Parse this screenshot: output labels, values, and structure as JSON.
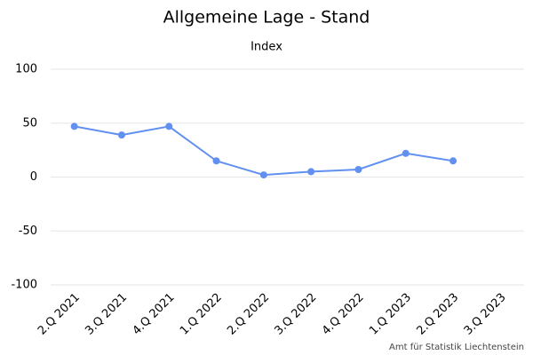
{
  "chart_data": {
    "type": "line",
    "title": "Allgemeine Lage - Stand",
    "subtitle": "Index",
    "credit": "Amt für Statistik Liechtenstein",
    "categories": [
      "2.Q 2021",
      "3.Q 2021",
      "4.Q 2021",
      "1.Q 2022",
      "2.Q 2022",
      "3.Q 2022",
      "4.Q 2022",
      "1.Q 2023",
      "2.Q 2023",
      "3.Q 2023"
    ],
    "values": [
      47,
      39,
      47,
      15,
      2,
      5,
      7,
      22,
      15,
      null
    ],
    "color": "#6190f0",
    "ylim": [
      -100,
      100
    ],
    "yticks": [
      -100,
      -50,
      0,
      50,
      100
    ],
    "grid": true
  }
}
